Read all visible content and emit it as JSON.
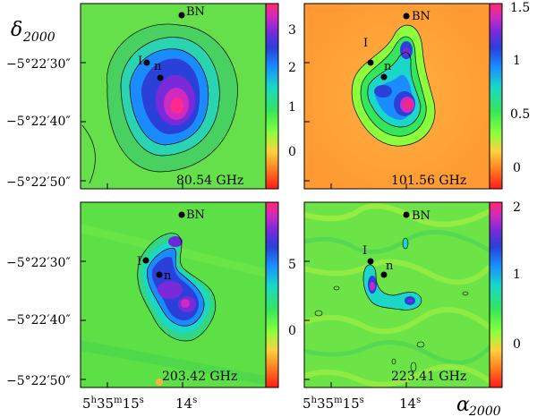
{
  "figure": {
    "dec_axis_label": "δ2000",
    "dec_axis_label_sub": "2000",
    "dec_axis_label_main": "δ",
    "ra_axis_label_main": "α",
    "ra_axis_label_sub": "2000",
    "dec_ticks": [
      "−5°22′30″",
      "−5°22′40″",
      "−5°22′50″"
    ],
    "ra_ticks": [
      "5h35m15s",
      "14s"
    ]
  },
  "sources": [
    {
      "label": "BN"
    },
    {
      "label": "I"
    },
    {
      "label": "n"
    }
  ],
  "panels": [
    {
      "frequency": "80.54 GHz",
      "colorbar_ticks": [
        "3",
        "2",
        "1",
        "0"
      ],
      "colorbar_range": [
        -0.7,
        3.4
      ]
    },
    {
      "frequency": "101.56 GHz",
      "colorbar_ticks": [
        "1.5",
        "1",
        "0.5",
        "0"
      ],
      "colorbar_range": [
        -0.2,
        1.5
      ]
    },
    {
      "frequency": "203.42 GHz",
      "colorbar_ticks": [
        "5",
        "0"
      ],
      "colorbar_range": [
        -4.0,
        8.0
      ]
    },
    {
      "frequency": "223.41 GHz",
      "colorbar_ticks": [
        "2",
        "1",
        "0"
      ],
      "colorbar_range": [
        -0.6,
        2.0
      ]
    }
  ],
  "colors": {
    "background_green": "#52d94a",
    "colormap": [
      "#ff1a1a",
      "#ff6a1f",
      "#ffb040",
      "#ffe04a",
      "#8cff3c",
      "#35e65a",
      "#1ad7c8",
      "#1a8cff",
      "#2a40d9",
      "#6a2ad9",
      "#c02ac8",
      "#ff2aa0",
      "#ff3a6a"
    ]
  }
}
